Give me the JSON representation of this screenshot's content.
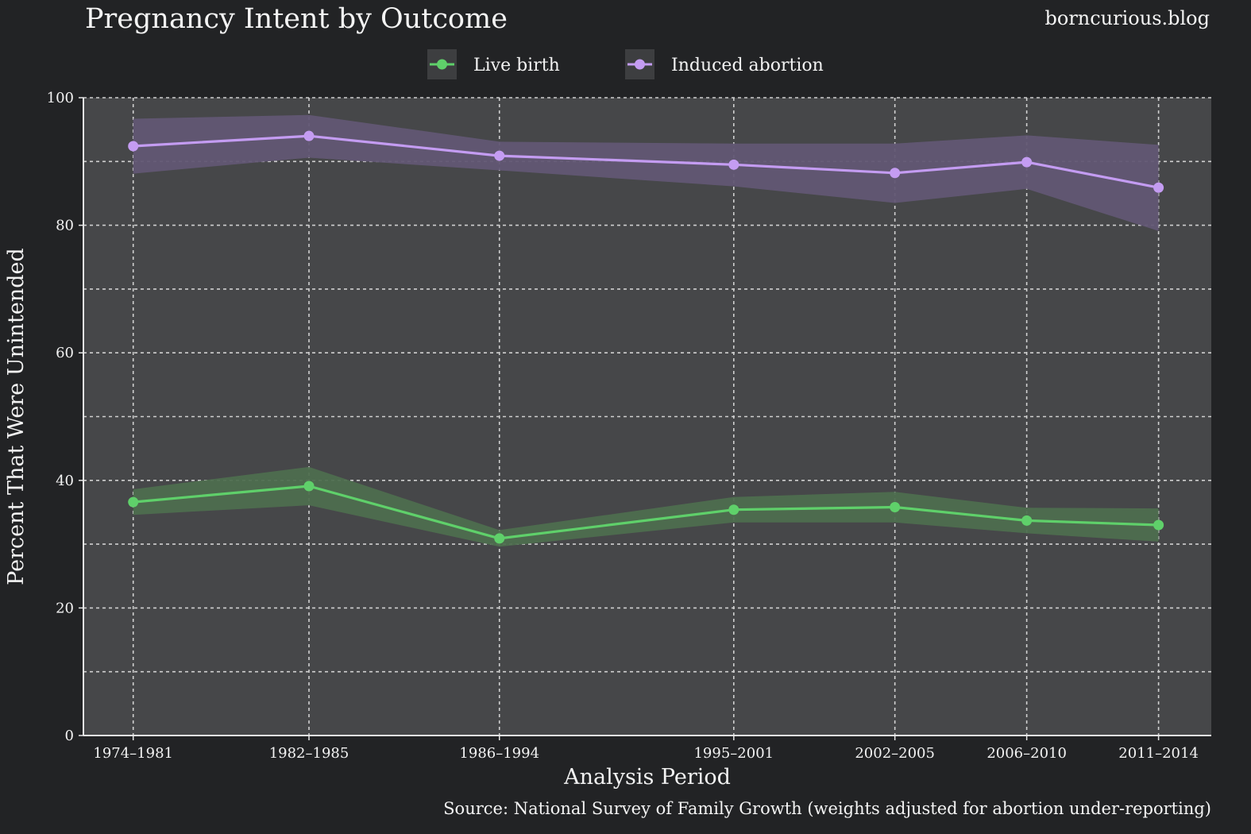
{
  "header": {
    "title": "Pregnancy Intent by Outcome",
    "site": "borncurious.blog"
  },
  "footer": {
    "source": "Source: National Survey of Family Growth (weights adjusted for abortion under-reporting)"
  },
  "colors": {
    "background": "#222325",
    "panel": "#464749",
    "grid": "#d0d0d0",
    "live_birth": "#5fd06a",
    "live_birth_band": "#4e6e4f",
    "abortion": "#c49cf2",
    "abortion_band": "#625774"
  },
  "chart_data": {
    "type": "line",
    "title": "Pregnancy Intent by Outcome",
    "xlabel": "Analysis Period",
    "ylabel": "Percent That Were Unintended",
    "ylim": [
      0,
      100
    ],
    "yticks": [
      0,
      20,
      40,
      60,
      80,
      100
    ],
    "ygrid_minor": [
      10,
      30,
      50,
      70,
      90
    ],
    "grid": true,
    "legend_position": "top-center",
    "categories": [
      "1974–1981",
      "1982–1985",
      "1986–1994",
      "1995–2001",
      "2002–2005",
      "2006–2010",
      "2011–2014"
    ],
    "x_midpoints": [
      1977.5,
      1983.5,
      1990,
      1998,
      2003.5,
      2008,
      2012.5
    ],
    "series": [
      {
        "name": "Live birth",
        "values": [
          36.6,
          39.1,
          30.9,
          35.4,
          35.8,
          33.7,
          33.0
        ],
        "lower": [
          34.6,
          36.1,
          29.6,
          33.4,
          33.4,
          31.7,
          30.4
        ],
        "upper": [
          38.6,
          42.1,
          32.2,
          37.4,
          38.2,
          35.7,
          35.6
        ]
      },
      {
        "name": "Induced abortion",
        "values": [
          92.4,
          94.0,
          90.9,
          89.5,
          88.2,
          89.9,
          85.9
        ],
        "lower": [
          88.1,
          90.6,
          88.6,
          86.1,
          83.5,
          85.7,
          79.1
        ],
        "upper": [
          96.7,
          97.3,
          93.1,
          92.8,
          92.8,
          94.1,
          92.6
        ]
      }
    ]
  }
}
